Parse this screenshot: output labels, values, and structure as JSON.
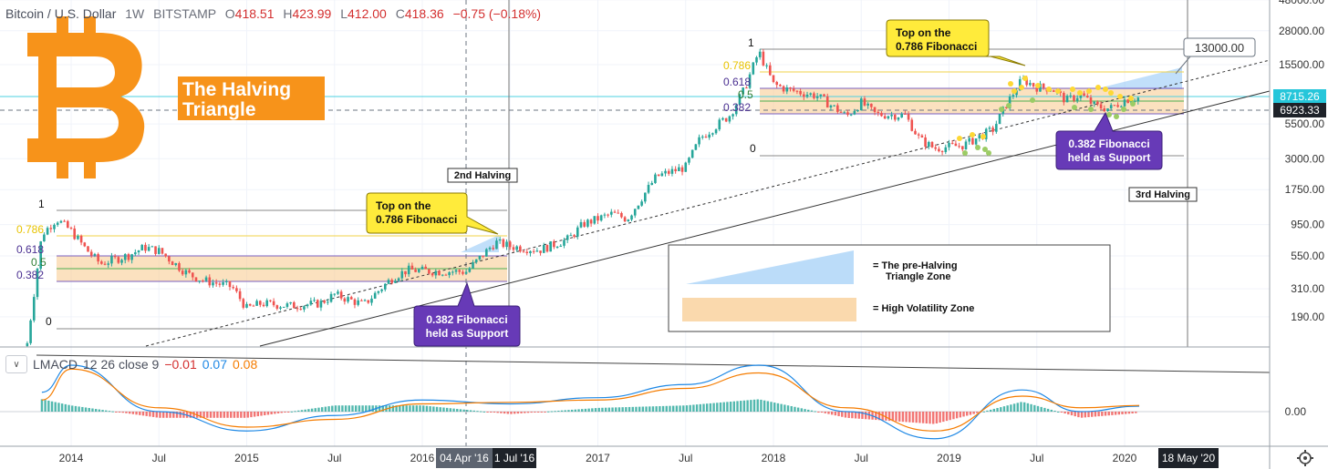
{
  "header": {
    "symbol": "Bitcoin / U.S. Dollar",
    "interval": "1W",
    "exchange": "BITSTAMP",
    "ohlc": [
      {
        "label": "O",
        "value": "418.51"
      },
      {
        "label": "H",
        "value": "423.99"
      },
      {
        "label": "L",
        "value": "412.00"
      },
      {
        "label": "C",
        "value": "418.36"
      }
    ],
    "change": "−0.75 (−0.18%)"
  },
  "title_box": {
    "line1": "The Halving",
    "line2": "Triangle"
  },
  "callouts": {
    "top1": {
      "line1": "Top on the",
      "line2": "0.786 Fibonacci"
    },
    "top2": {
      "line1": "Top on the",
      "line2": "0.786 Fibonacci"
    },
    "support1": {
      "line1": "0.382 Fibonacci",
      "line2": "held as Support"
    },
    "support2": {
      "line1": "0.382 Fibonacci",
      "line2": "held as Support"
    }
  },
  "halving_labels": {
    "second": "2nd Halving",
    "third": "3rd Halving"
  },
  "legend": {
    "triangle_line1": "= The pre-Halving",
    "triangle_line2": "Triangle Zone",
    "volatility": "= High Volatility Zone"
  },
  "price_boxes": {
    "target": "13000.00",
    "current": "8715.26",
    "crosshair": "6923.33"
  },
  "macd": {
    "name": "LMACD",
    "params": "12 26 close 9",
    "hist": "−0.01",
    "macd": "0.07",
    "signal": "0.08",
    "zero_label": "0.00"
  },
  "x_axis": {
    "labels": [
      "2014",
      "Jul",
      "2015",
      "Jul",
      "2016",
      "Jul",
      "2017",
      "Jul",
      "2018",
      "Jul",
      "2019",
      "Jul",
      "2020"
    ],
    "highlight_1": "04 Apr '16",
    "highlight_2": "1 Jul '16",
    "highlight_3": "18 May '20"
  },
  "y_axis": {
    "labels": [
      "48000.00",
      "28000.00",
      "15500.00",
      "5500.00",
      "3000.00",
      "1750.00",
      "950.00",
      "550.00",
      "310.00",
      "190.00"
    ]
  },
  "fib_sets": [
    {
      "labels": [
        "1",
        "0.786",
        "0.618",
        "0.5",
        "0.382",
        "0"
      ]
    },
    {
      "labels": [
        "1",
        "0.786",
        "0.618",
        "0.5",
        "0.382",
        "0"
      ]
    }
  ],
  "colors": {
    "up": "#26a69a",
    "down": "#ef5350",
    "fib_zone": "#f8c98a",
    "triangle_zone": "#8ec5f5",
    "callout_yellow": "#ffeb3b",
    "callout_purple": "#673ab7",
    "bitcoin_orange": "#f7931a",
    "macd_line": "#1e88e5",
    "signal_line": "#f57c00"
  },
  "chart_data": {
    "type": "candlestick",
    "symbol": "Bitcoin / U.S. Dollar",
    "interval": "1W",
    "scale": "log",
    "x_range": [
      "2013-10",
      "2020-05"
    ],
    "y_range": [
      110,
      48000
    ],
    "series": [
      {
        "name": "BTCUSD",
        "points": [
          [
            "2013-10",
            120
          ],
          [
            "2013-11",
            800
          ],
          [
            "2013-12",
            1050
          ],
          [
            "2014-01",
            850
          ],
          [
            "2014-02",
            620
          ],
          [
            "2014-03",
            480
          ],
          [
            "2014-05",
            560
          ],
          [
            "2014-06",
            640
          ],
          [
            "2014-07",
            600
          ],
          [
            "2014-09",
            400
          ],
          [
            "2014-10",
            360
          ],
          [
            "2014-12",
            320
          ],
          [
            "2015-01",
            220
          ],
          [
            "2015-02",
            240
          ],
          [
            "2015-04",
            230
          ],
          [
            "2015-06",
            240
          ],
          [
            "2015-07",
            280
          ],
          [
            "2015-09",
            235
          ],
          [
            "2015-11",
            380
          ],
          [
            "2015-12",
            430
          ],
          [
            "2016-02",
            420
          ],
          [
            "2016-04",
            418
          ],
          [
            "2016-06",
            700
          ],
          [
            "2016-07",
            650
          ],
          [
            "2016-09",
            610
          ],
          [
            "2016-11",
            740
          ],
          [
            "2016-12",
            960
          ],
          [
            "2017-02",
            1150
          ],
          [
            "2017-03",
            1050
          ],
          [
            "2017-05",
            2200
          ],
          [
            "2017-07",
            2600
          ],
          [
            "2017-08",
            4300
          ],
          [
            "2017-10",
            6400
          ],
          [
            "2017-11",
            10000
          ],
          [
            "2017-12",
            19500
          ],
          [
            "2018-01",
            11000
          ],
          [
            "2018-02",
            10000
          ],
          [
            "2018-04",
            9000
          ],
          [
            "2018-06",
            6300
          ],
          [
            "2018-07",
            8000
          ],
          [
            "2018-08",
            6500
          ],
          [
            "2018-10",
            6400
          ],
          [
            "2018-11",
            4200
          ],
          [
            "2018-12",
            3600
          ],
          [
            "2019-02",
            3800
          ],
          [
            "2019-04",
            5000
          ],
          [
            "2019-05",
            8000
          ],
          [
            "2019-06",
            12000
          ],
          [
            "2019-07",
            10500
          ],
          [
            "2019-08",
            10300
          ],
          [
            "2019-09",
            8300
          ],
          [
            "2019-10",
            9200
          ],
          [
            "2019-11",
            7500
          ],
          [
            "2019-12",
            7200
          ],
          [
            "2020-01",
            8400
          ],
          [
            "2020-02",
            8715
          ]
        ]
      }
    ],
    "fibonacci": [
      {
        "range": "2013-12 to 2015-01",
        "levels": {
          "1": 1150,
          "0.786": 780,
          "0.618": 560,
          "0.5": 470,
          "0.382": 400,
          "0": 170
        }
      },
      {
        "range": "2017-12 to 2018-12",
        "levels": {
          "1": 20000,
          "0.786": 12500,
          "0.618": 9800,
          "0.5": 8000,
          "0.382": 7000,
          "0": 3200
        }
      }
    ],
    "annotations": [
      {
        "text": "Top on the 0.786 Fibonacci",
        "date": "2016-06"
      },
      {
        "text": "0.382 Fibonacci held as Support",
        "date": "2016-04"
      },
      {
        "text": "Top on the 0.786 Fibonacci",
        "date": "2019-06"
      },
      {
        "text": "0.382 Fibonacci held as Support",
        "date": "2019-12"
      },
      {
        "text": "2nd Halving",
        "date": "2016-07"
      },
      {
        "text": "3rd Halving",
        "date": "2020-05"
      },
      {
        "text": "13000.00",
        "date": "2020-05"
      }
    ],
    "macd": {
      "name": "LMACD 12 26 close 9",
      "x": [
        "2013-11",
        "2014-01",
        "2014-07",
        "2015-01",
        "2015-07",
        "2016-01",
        "2016-07",
        "2017-01",
        "2017-07",
        "2017-12",
        "2018-06",
        "2018-12",
        "2019-06",
        "2019-10",
        "2020-02"
      ],
      "macd": [
        0.25,
        0.6,
        0.0,
        -0.25,
        -0.05,
        0.15,
        0.1,
        0.18,
        0.35,
        0.6,
        0.0,
        -0.35,
        0.28,
        0.0,
        0.07
      ],
      "signal": [
        0.15,
        0.55,
        0.05,
        -0.2,
        -0.1,
        0.1,
        0.12,
        0.15,
        0.3,
        0.5,
        0.05,
        -0.25,
        0.2,
        0.05,
        0.08
      ],
      "zero": 0.0
    }
  }
}
